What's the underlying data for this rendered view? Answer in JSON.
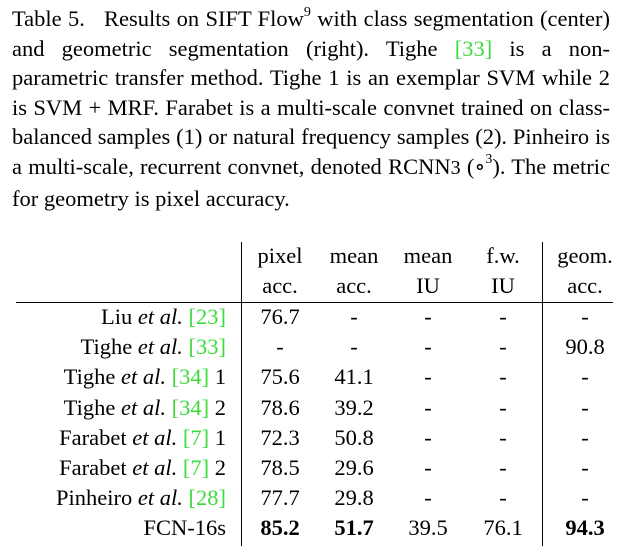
{
  "caption": {
    "label": "Table 5.",
    "title_lead": "Results on SIFT Flow",
    "footnote_mark": "9",
    "title_rest": " with class segmentation (center) and geometric segmentation (right). Tighe ",
    "cite_tighe": "[33]",
    "s2": " is a non-parametric transfer method. Tighe 1 is an exemplar SVM while 2 is SVM + MRF. Farabet is a multi-scale convnet trained on class-balanced samples (1) or natural frequency samples (2). Pinheiro is a multi-scale, recurrent convnet, denoted ",
    "rcnn_main": "RCNN",
    "rcnn_sub": "3",
    "s3_open": " (∘",
    "s3_exp": "3",
    "s3_end": "). The metric for geometry is pixel accuracy."
  },
  "table": {
    "headers": [
      {
        "l1": "pixel",
        "l2": "acc."
      },
      {
        "l1": "mean",
        "l2": "acc."
      },
      {
        "l1": "mean",
        "l2": "IU"
      },
      {
        "l1": "f.w.",
        "l2": "IU"
      },
      {
        "l1": "geom.",
        "l2": "acc."
      }
    ],
    "rows": [
      {
        "name": "Liu",
        "etal": "et al.",
        "cite": "[23]",
        "suffix": "",
        "values": [
          "76.7",
          "-",
          "-",
          "-",
          "-"
        ],
        "bold": [
          false,
          false,
          false,
          false,
          false
        ]
      },
      {
        "name": "Tighe",
        "etal": "et al.",
        "cite": "[33]",
        "suffix": "",
        "values": [
          "-",
          "-",
          "-",
          "-",
          "90.8"
        ],
        "bold": [
          false,
          false,
          false,
          false,
          false
        ]
      },
      {
        "name": "Tighe",
        "etal": "et al.",
        "cite": "[34]",
        "suffix": "1",
        "values": [
          "75.6",
          "41.1",
          "-",
          "-",
          "-"
        ],
        "bold": [
          false,
          false,
          false,
          false,
          false
        ]
      },
      {
        "name": "Tighe",
        "etal": "et al.",
        "cite": "[34]",
        "suffix": "2",
        "values": [
          "78.6",
          "39.2",
          "-",
          "-",
          "-"
        ],
        "bold": [
          false,
          false,
          false,
          false,
          false
        ]
      },
      {
        "name": "Farabet",
        "etal": "et al.",
        "cite": "[7]",
        "suffix": "1",
        "values": [
          "72.3",
          "50.8",
          "-",
          "-",
          "-"
        ],
        "bold": [
          false,
          false,
          false,
          false,
          false
        ]
      },
      {
        "name": "Farabet",
        "etal": "et al.",
        "cite": "[7]",
        "suffix": "2",
        "values": [
          "78.5",
          "29.6",
          "-",
          "-",
          "-"
        ],
        "bold": [
          false,
          false,
          false,
          false,
          false
        ]
      },
      {
        "name": "Pinheiro",
        "etal": "et al.",
        "cite": "[28]",
        "suffix": "",
        "values": [
          "77.7",
          "29.8",
          "-",
          "-",
          "-"
        ],
        "bold": [
          false,
          false,
          false,
          false,
          false
        ]
      },
      {
        "name": "FCN-16s",
        "etal": "",
        "cite": "",
        "suffix": "",
        "values": [
          "85.2",
          "51.7",
          "39.5",
          "76.1",
          "94.3"
        ],
        "bold": [
          true,
          true,
          false,
          false,
          true
        ]
      }
    ]
  }
}
